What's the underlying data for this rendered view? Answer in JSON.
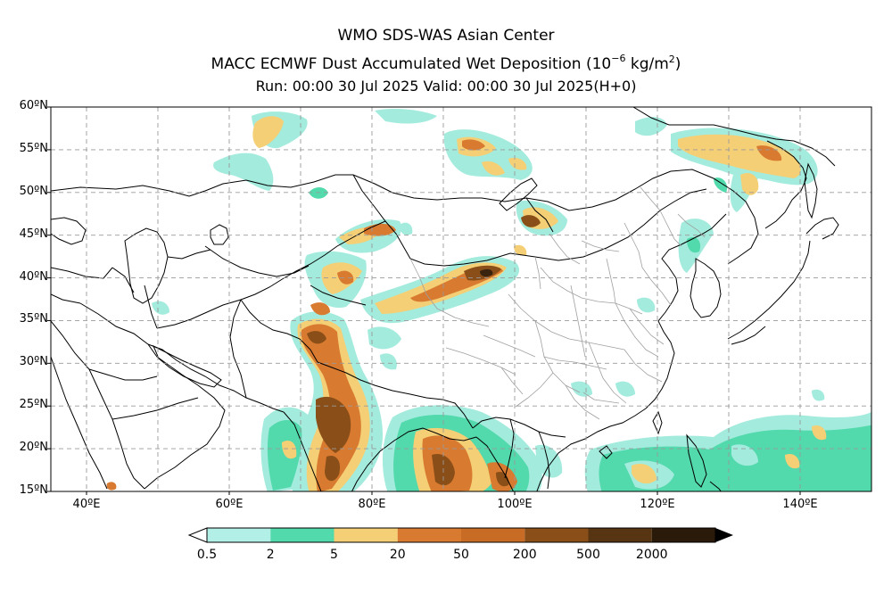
{
  "titles": {
    "line1": "WMO SDS-WAS Asian Center",
    "line2_main": "MACC ECMWF Dust Accumulated Wet Deposition (10",
    "line2_exp": "−6",
    "line2_unit": " kg/m",
    "line2_exp2": "2",
    "line2_close": ")",
    "line3": "Run: 00:00 30 Jul 2025     Valid: 00:00 30 Jul 2025(H+0)"
  },
  "map": {
    "lon_range": [
      35,
      150
    ],
    "lat_range": [
      15,
      60
    ],
    "lat_ticks": [
      {
        "value": 60,
        "label": "60ºN"
      },
      {
        "value": 55,
        "label": "55ºN"
      },
      {
        "value": 50,
        "label": "50ºN"
      },
      {
        "value": 45,
        "label": "45ºN"
      },
      {
        "value": 40,
        "label": "40ºN"
      },
      {
        "value": 35,
        "label": "35ºN"
      },
      {
        "value": 30,
        "label": "30ºN"
      },
      {
        "value": 25,
        "label": "25ºN"
      },
      {
        "value": 20,
        "label": "20ºN"
      },
      {
        "value": 15,
        "label": "15ºN"
      }
    ],
    "lon_ticks": [
      {
        "value": 40,
        "label": "40ºE"
      },
      {
        "value": 60,
        "label": "60ºE"
      },
      {
        "value": 80,
        "label": "80ºE"
      },
      {
        "value": 100,
        "label": "100ºE"
      },
      {
        "value": 120,
        "label": "120ºE"
      },
      {
        "value": 140,
        "label": "140ºE"
      }
    ],
    "grid_lons": [
      40,
      50,
      60,
      70,
      80,
      90,
      100,
      110,
      120,
      130,
      140
    ],
    "grid_lats": [
      20,
      25,
      30,
      35,
      40,
      45,
      50,
      55
    ]
  },
  "colorbar": {
    "levels": [
      "0.5",
      "2",
      "5",
      "20",
      "50",
      "200",
      "500",
      "2000"
    ],
    "colors": [
      "#b2efe6",
      "#52d9ac",
      "#f5cf75",
      "#d87a30",
      "#c76b25",
      "#8a4f18",
      "#573513",
      "#2a1a0a"
    ],
    "under_color": "#ffffff",
    "over_color": "#000000"
  },
  "field_colors": {
    "c1": "#a3ebdd",
    "c2": "#52d9ac",
    "c3": "#f5cf75",
    "c4": "#d87a30",
    "c5": "#8a4f18",
    "c6": "#3a2410"
  }
}
